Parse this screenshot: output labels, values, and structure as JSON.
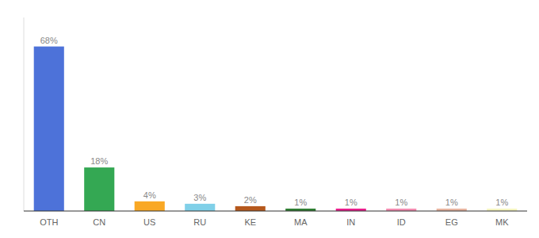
{
  "chart_data": {
    "type": "bar",
    "categories": [
      "OTH",
      "CN",
      "US",
      "RU",
      "KE",
      "MA",
      "IN",
      "ID",
      "EG",
      "MK"
    ],
    "values": [
      68,
      18,
      4,
      3,
      2,
      1,
      1,
      1,
      1,
      1
    ],
    "value_labels": [
      "68%",
      "18%",
      "4%",
      "3%",
      "2%",
      "1%",
      "1%",
      "1%",
      "1%",
      "1%"
    ],
    "colors": [
      "#4d72d9",
      "#34a853",
      "#f9a825",
      "#80d0e8",
      "#b5581c",
      "#2e7d32",
      "#e91e8c",
      "#f48cb1",
      "#e8b4a0",
      "#f5f5c0"
    ],
    "ylim": [
      0,
      80
    ],
    "data_labels": true,
    "tick_labels": "x",
    "grid": false
  }
}
